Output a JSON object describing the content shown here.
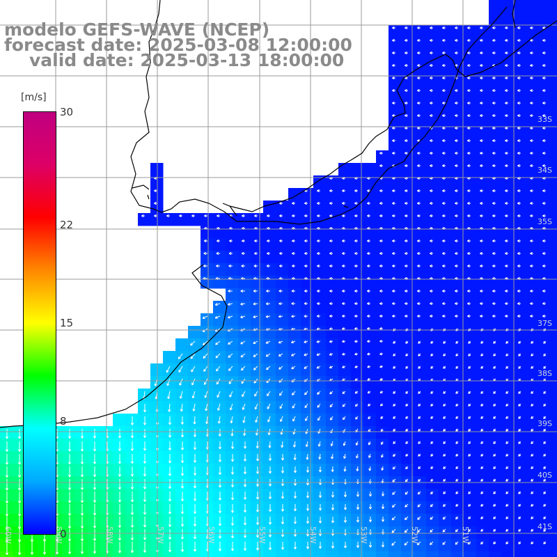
{
  "title": {
    "line1": "modelo GEFS-WAVE (NCEP)",
    "line2": "forecast date: 2025-03-08 12:00:00",
    "line3": "valid date: 2025-03-13 18:00:00"
  },
  "colorbar": {
    "unit": "[m/s]",
    "ticks": [
      "30",
      "22",
      "15",
      "8",
      "0"
    ],
    "tick_values": [
      30,
      22,
      15,
      8,
      0
    ],
    "range": [
      0,
      30
    ],
    "stops": [
      "#0000ff",
      "#00aaff",
      "#00ffff",
      "#00ff00",
      "#ffff00",
      "#ff8800",
      "#ff0000",
      "#dd0066",
      "#c00080"
    ]
  },
  "map": {
    "variable": "wind speed and direction",
    "lat_labels": [
      "33S",
      "34S",
      "35S",
      "37S",
      "38S",
      "39S",
      "40S",
      "41S"
    ],
    "lon_labels": [
      "60W",
      "59W",
      "58W",
      "57W",
      "56W",
      "55W",
      "54W",
      "53W",
      "52W",
      "51W"
    ],
    "land_color": "#ffffff",
    "grid_color": "#999999",
    "arrow_color": "#ffffff"
  }
}
